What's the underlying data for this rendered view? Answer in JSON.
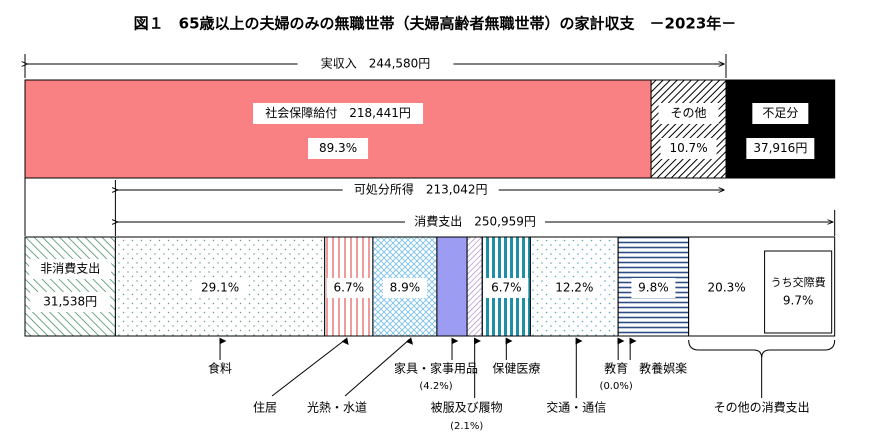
{
  "chart_data": {
    "type": "bar",
    "title": "図１　65歳以上の夫婦のみの無職世帯（夫婦高齢者無職世帯）の家計収支　－2023年－",
    "currency": "円",
    "income": {
      "label": "実収入　244,580円",
      "value": 244580,
      "segments": [
        {
          "name": "社会保障給付",
          "label": "社会保障給付　218,441円",
          "value": 218441,
          "pct_label": "89.3%",
          "color": "#F98183",
          "pattern": "solid"
        },
        {
          "name": "その他",
          "label": "その他",
          "value": 26139,
          "pct_label": "10.7%",
          "color": "#000000",
          "pattern": "diagonal-hatch"
        },
        {
          "name": "不足分",
          "label": "不足分",
          "value": 37916,
          "value_label": "37,916円",
          "color": "#000000",
          "pattern": "solid-black"
        }
      ]
    },
    "disposable_income": {
      "label": "可処分所得　213,042円",
      "value": 213042
    },
    "consumption": {
      "label": "消費支出　250,959円",
      "value": 250959
    },
    "expenditure": {
      "segments": [
        {
          "name": "非消費支出",
          "label": "非消費支出",
          "value": 31538,
          "value_label": "31,538円",
          "color": "#2E7D4F",
          "pattern": "diag-lines"
        },
        {
          "name": "食料",
          "pct": 29.1,
          "pct_label": "29.1%",
          "color": "#86B89A",
          "pattern": "dots"
        },
        {
          "name": "住居",
          "pct": 6.7,
          "pct_label": "6.7%",
          "color": "#E05A5A",
          "pattern": "vlines"
        },
        {
          "name": "光熱・水道",
          "pct": 8.9,
          "pct_label": "8.9%",
          "color": "#7CC0E8",
          "pattern": "cross-diag"
        },
        {
          "name": "家具・家事用品",
          "pct": 4.2,
          "pct_label": "",
          "color": "#9C9CF2",
          "pattern": "solid"
        },
        {
          "name": "被服及び履物",
          "pct": 2.1,
          "pct_label": "",
          "color": "#9B7DC9",
          "pattern": "rev-diag"
        },
        {
          "name": "保健医療",
          "pct": 6.7,
          "pct_label": "6.7%",
          "color": "#1F8FA8",
          "pattern": "vstripes"
        },
        {
          "name": "交通・通信",
          "pct": 12.2,
          "pct_label": "12.2%",
          "color": "#5AA9C4",
          "pattern": "dots"
        },
        {
          "name": "教育",
          "pct": 0.0,
          "pct_label": "",
          "color": "#2E5F8A",
          "pattern": "none"
        },
        {
          "name": "教養娯楽",
          "pct": 9.8,
          "pct_label": "9.8%",
          "color": "#2E4D86",
          "pattern": "hlines"
        },
        {
          "name": "その他の消費支出",
          "pct": 20.3,
          "pct_label": "20.3%",
          "color": "#FFFFFF",
          "pattern": "none",
          "sub": {
            "label": "うち交際費",
            "pct_label": "9.7%"
          }
        }
      ]
    },
    "callouts": {
      "food": "食料",
      "housing": "住居",
      "utilities": "光熱・水道",
      "furniture": "家具・家事用品",
      "furniture_pct": "(4.2%)",
      "clothing": "被服及び履物",
      "clothing_pct": "(2.1%)",
      "medical": "保健医療",
      "transport": "交通・通信",
      "education": "教育",
      "education_pct": "(0.0%)",
      "recreation": "教養娯楽",
      "other": "その他の消費支出"
    }
  }
}
